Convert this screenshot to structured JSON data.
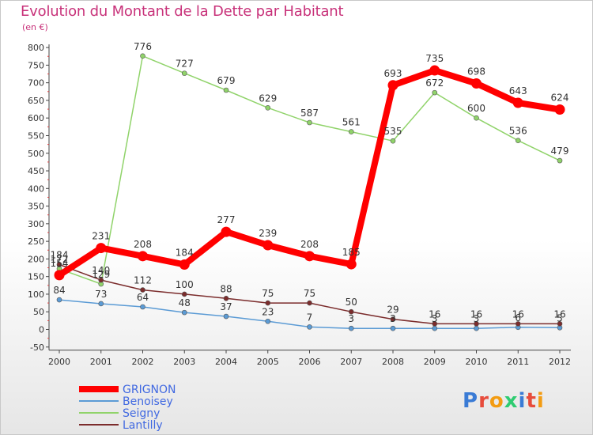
{
  "title": "Evolution du Montant de la Dette par Habitant",
  "unit": "(en €)",
  "logo": "Proxiti",
  "chart_data": {
    "type": "line",
    "x": [
      "2000",
      "2001",
      "2002",
      "2003",
      "2004",
      "2005",
      "2006",
      "2007",
      "2008",
      "2009",
      "2010",
      "2011",
      "2012"
    ],
    "ylim": [
      -50,
      800
    ],
    "yticks": [
      -50,
      0,
      50,
      100,
      150,
      200,
      250,
      300,
      350,
      400,
      450,
      500,
      550,
      600,
      650,
      700,
      750,
      800
    ],
    "grid": false,
    "legend_position": "bottom-left",
    "series": [
      {
        "name": "GRIGNON",
        "color": "#ff0000",
        "labelColor": "#4169e1",
        "values": [
          154,
          231,
          208,
          184,
          277,
          239,
          208,
          185,
          693,
          735,
          698,
          643,
          624
        ],
        "labels": [
          "154",
          "231",
          "208",
          "184",
          "277",
          "239",
          "208",
          "185",
          "693",
          "735",
          "698",
          "643",
          "624"
        ]
      },
      {
        "name": "Benoisey",
        "color": "#5b9bd5",
        "labelColor": "#4169e1",
        "values": [
          84,
          73,
          64,
          48,
          37,
          23,
          7,
          3,
          3,
          3,
          3,
          6,
          5
        ],
        "labels": [
          "84",
          "73",
          "64",
          "48",
          "37",
          "23",
          "7",
          "3",
          "3",
          "3",
          "3",
          "6",
          "5"
        ]
      },
      {
        "name": "Seigny",
        "color": "#90d36a",
        "labelColor": "#4169e1",
        "values": [
          172,
          129,
          776,
          727,
          679,
          629,
          587,
          561,
          535,
          672,
          600,
          536,
          479
        ],
        "labels": [
          "172",
          "129",
          "776",
          "727",
          "679",
          "629",
          "587",
          "561",
          "535",
          "672",
          "600",
          "536",
          "479"
        ]
      },
      {
        "name": "Lantilly",
        "color": "#7b2c2c",
        "labelColor": "#4169e1",
        "values": [
          184,
          140,
          112,
          100,
          88,
          75,
          75,
          50,
          29,
          16,
          16,
          16,
          16
        ],
        "labels": [
          "184",
          "140",
          "112",
          "100",
          "88",
          "75",
          "75",
          "50",
          "29",
          "16",
          "16",
          "16",
          "16"
        ]
      }
    ]
  }
}
